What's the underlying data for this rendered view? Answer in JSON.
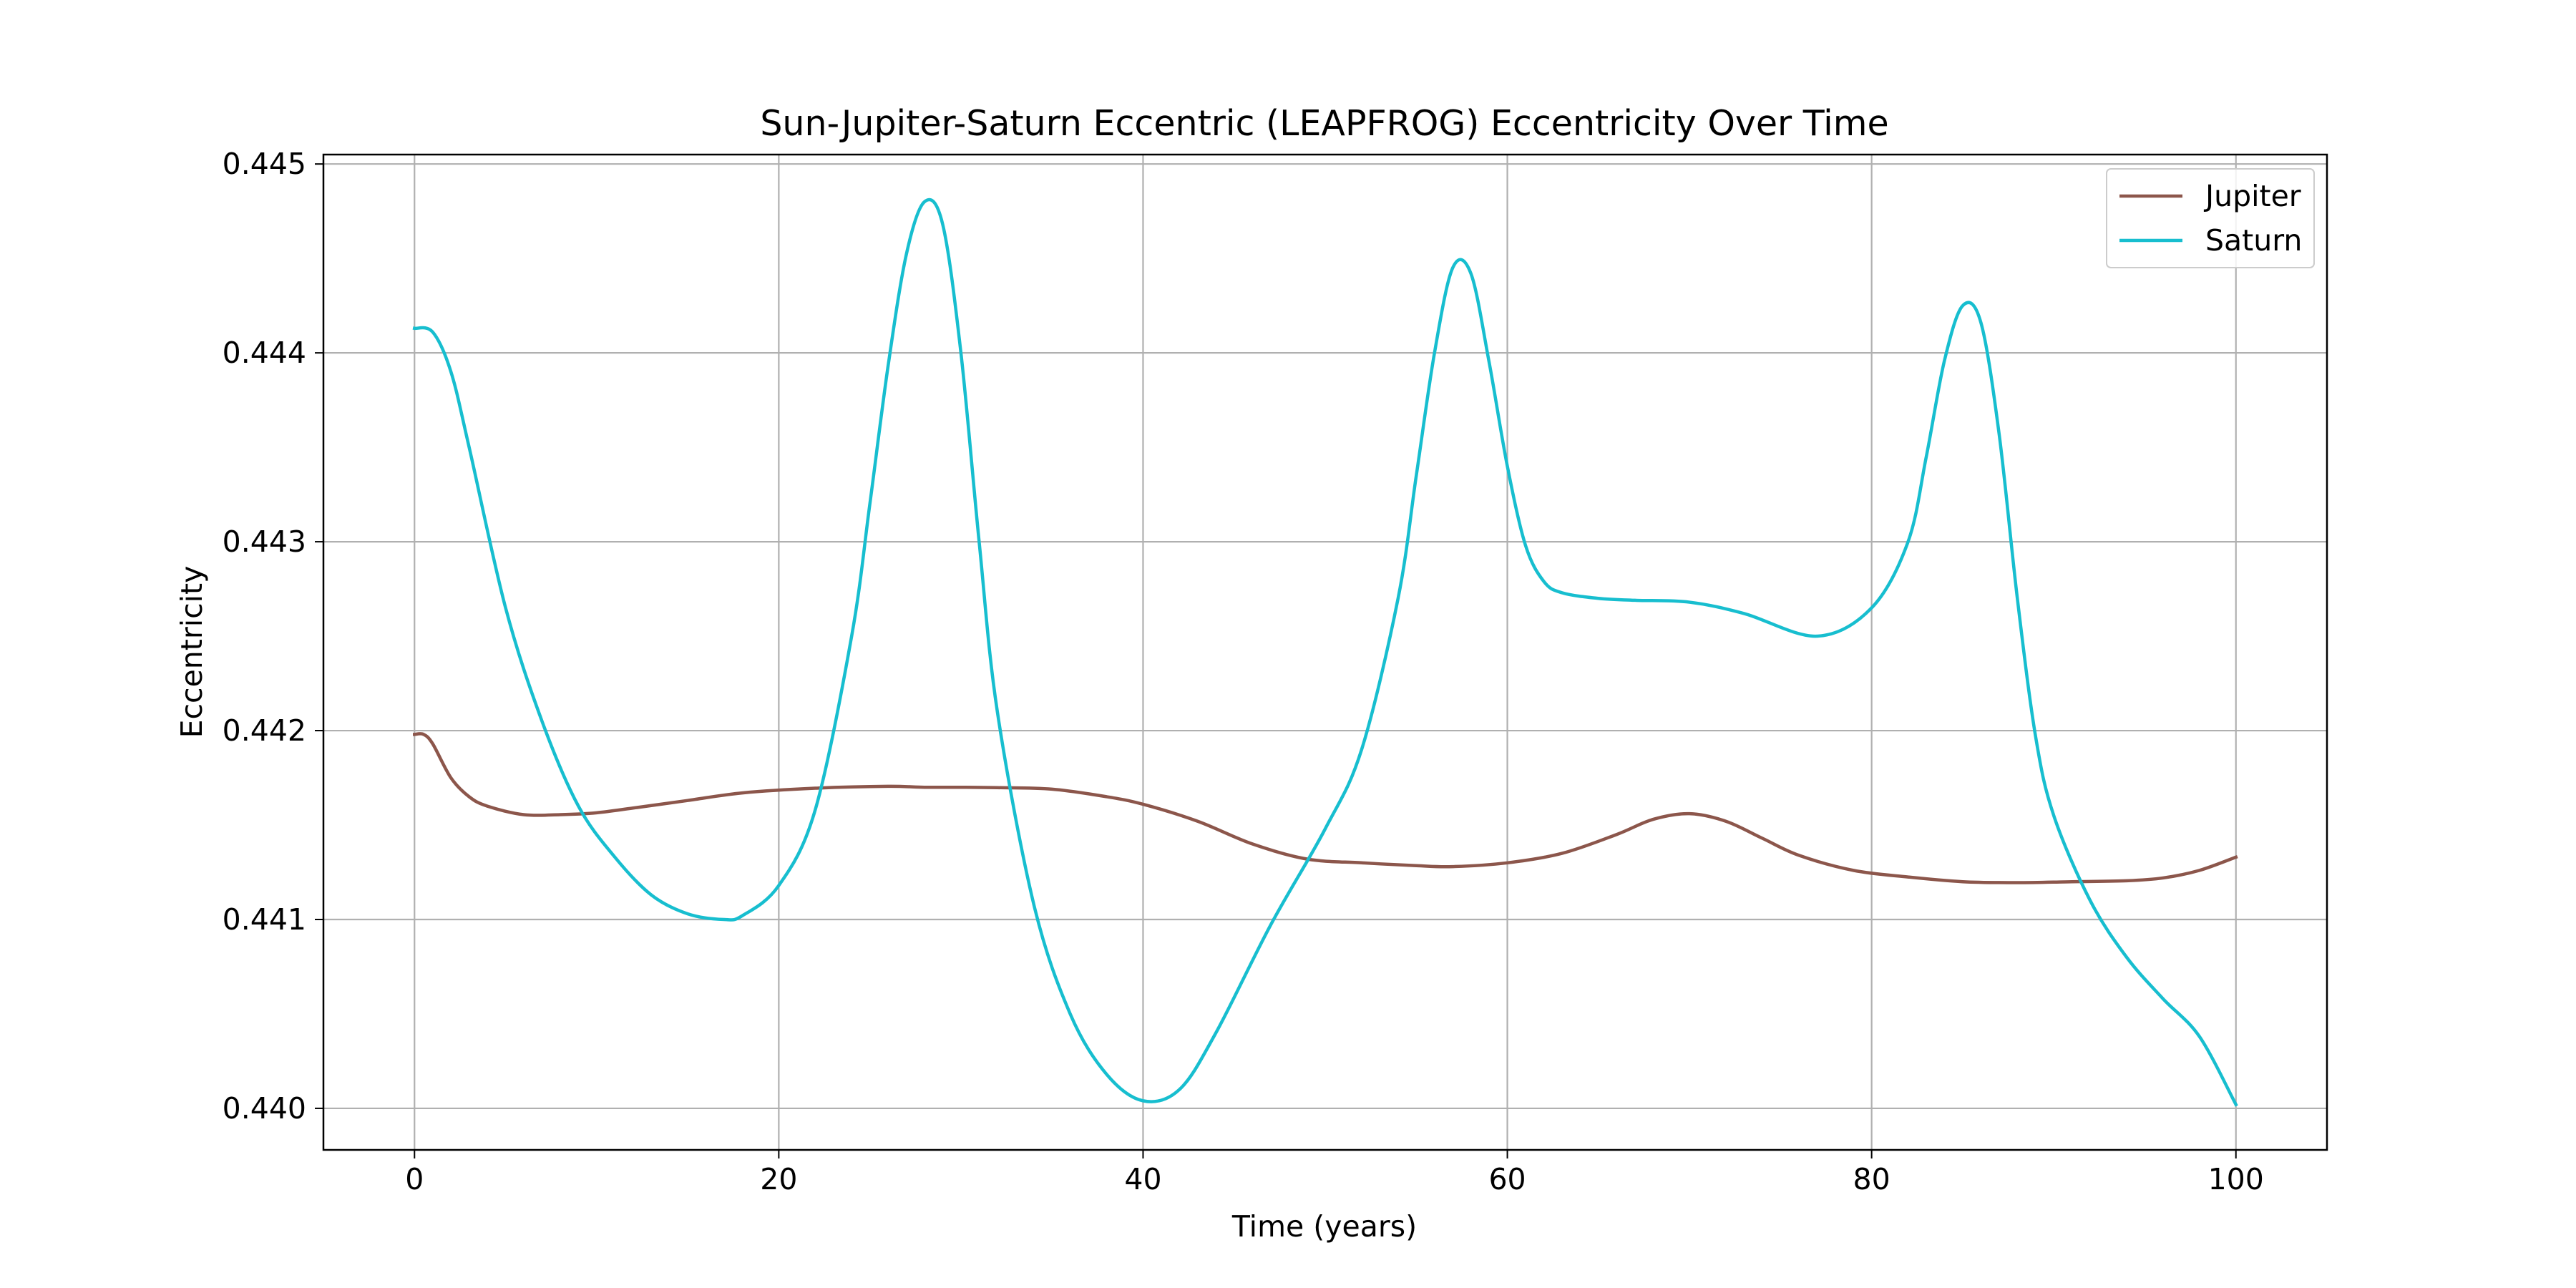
{
  "chart_data": {
    "type": "line",
    "title": "Sun-Jupiter-Saturn Eccentric (LEAPFROG) Eccentricity Over Time",
    "xlabel": "Time (years)",
    "ylabel": "Eccentricity",
    "xlim": [
      -5,
      105
    ],
    "ylim": [
      0.43978,
      0.44505
    ],
    "xticks": [
      0,
      20,
      40,
      60,
      80,
      100
    ],
    "xtick_labels": [
      "0",
      "20",
      "40",
      "60",
      "80",
      "100"
    ],
    "yticks": [
      0.44,
      0.441,
      0.442,
      0.443,
      0.444,
      0.445
    ],
    "ytick_labels": [
      "0.440",
      "0.441",
      "0.442",
      "0.443",
      "0.444",
      "0.445"
    ],
    "grid": true,
    "legend_position": "top-right",
    "series": [
      {
        "name": "Jupiter",
        "color": "#8c564b",
        "x": [
          0,
          0.5,
          1,
          2,
          3,
          4,
          6,
          8,
          10,
          12,
          15,
          18,
          22,
          26,
          28,
          30,
          32,
          35,
          38,
          40,
          43,
          46,
          49,
          52,
          55,
          57,
          60,
          63,
          66,
          68,
          70,
          72,
          74,
          76,
          79,
          82,
          85,
          88,
          91,
          94,
          96,
          98,
          100
        ],
        "y": [
          0.44198,
          0.44198,
          0.44193,
          0.44175,
          0.44165,
          0.4416,
          0.441555,
          0.441555,
          0.441565,
          0.44159,
          0.44163,
          0.44167,
          0.441695,
          0.441705,
          0.4417,
          0.4417,
          0.441698,
          0.44169,
          0.44165,
          0.44161,
          0.44152,
          0.4414,
          0.44132,
          0.4413,
          0.441285,
          0.44128,
          0.4413,
          0.44135,
          0.44145,
          0.44153,
          0.44156,
          0.44152,
          0.44143,
          0.44134,
          0.44126,
          0.441225,
          0.4412,
          0.441195,
          0.4412,
          0.441205,
          0.44122,
          0.44126,
          0.44133
        ]
      },
      {
        "name": "Saturn",
        "color": "#17becf",
        "x": [
          0,
          1,
          2,
          3,
          5,
          7,
          9,
          11,
          13,
          15,
          17,
          18,
          20,
          22,
          24,
          25,
          26,
          27,
          28,
          29,
          30,
          31,
          32,
          34,
          36,
          38,
          40,
          42,
          44,
          47,
          50,
          52,
          54,
          55,
          56,
          57,
          58,
          59,
          60,
          61,
          62,
          63,
          65,
          67,
          70,
          73,
          77,
          80,
          82,
          83,
          84,
          85,
          86,
          87,
          88,
          89,
          90,
          92,
          94,
          96,
          98,
          100
        ],
        "y": [
          0.44413,
          0.44411,
          0.4439,
          0.4435,
          0.44265,
          0.44205,
          0.4416,
          0.44133,
          0.44113,
          0.44103,
          0.441,
          0.44102,
          0.44118,
          0.44158,
          0.4425,
          0.4432,
          0.44393,
          0.44452,
          0.4448,
          0.44468,
          0.444,
          0.443,
          0.4421,
          0.44108,
          0.4405,
          0.44018,
          0.44004,
          0.4401,
          0.4404,
          0.44097,
          0.44148,
          0.4419,
          0.4427,
          0.44335,
          0.444,
          0.44445,
          0.44442,
          0.44395,
          0.4434,
          0.44298,
          0.44279,
          0.44273,
          0.4427,
          0.44269,
          0.44268,
          0.44262,
          0.4425,
          0.44265,
          0.443,
          0.44345,
          0.44396,
          0.44425,
          0.44416,
          0.44357,
          0.4427,
          0.44197,
          0.44155,
          0.4411,
          0.4408,
          0.44058,
          0.44038,
          0.44002
        ]
      }
    ]
  }
}
